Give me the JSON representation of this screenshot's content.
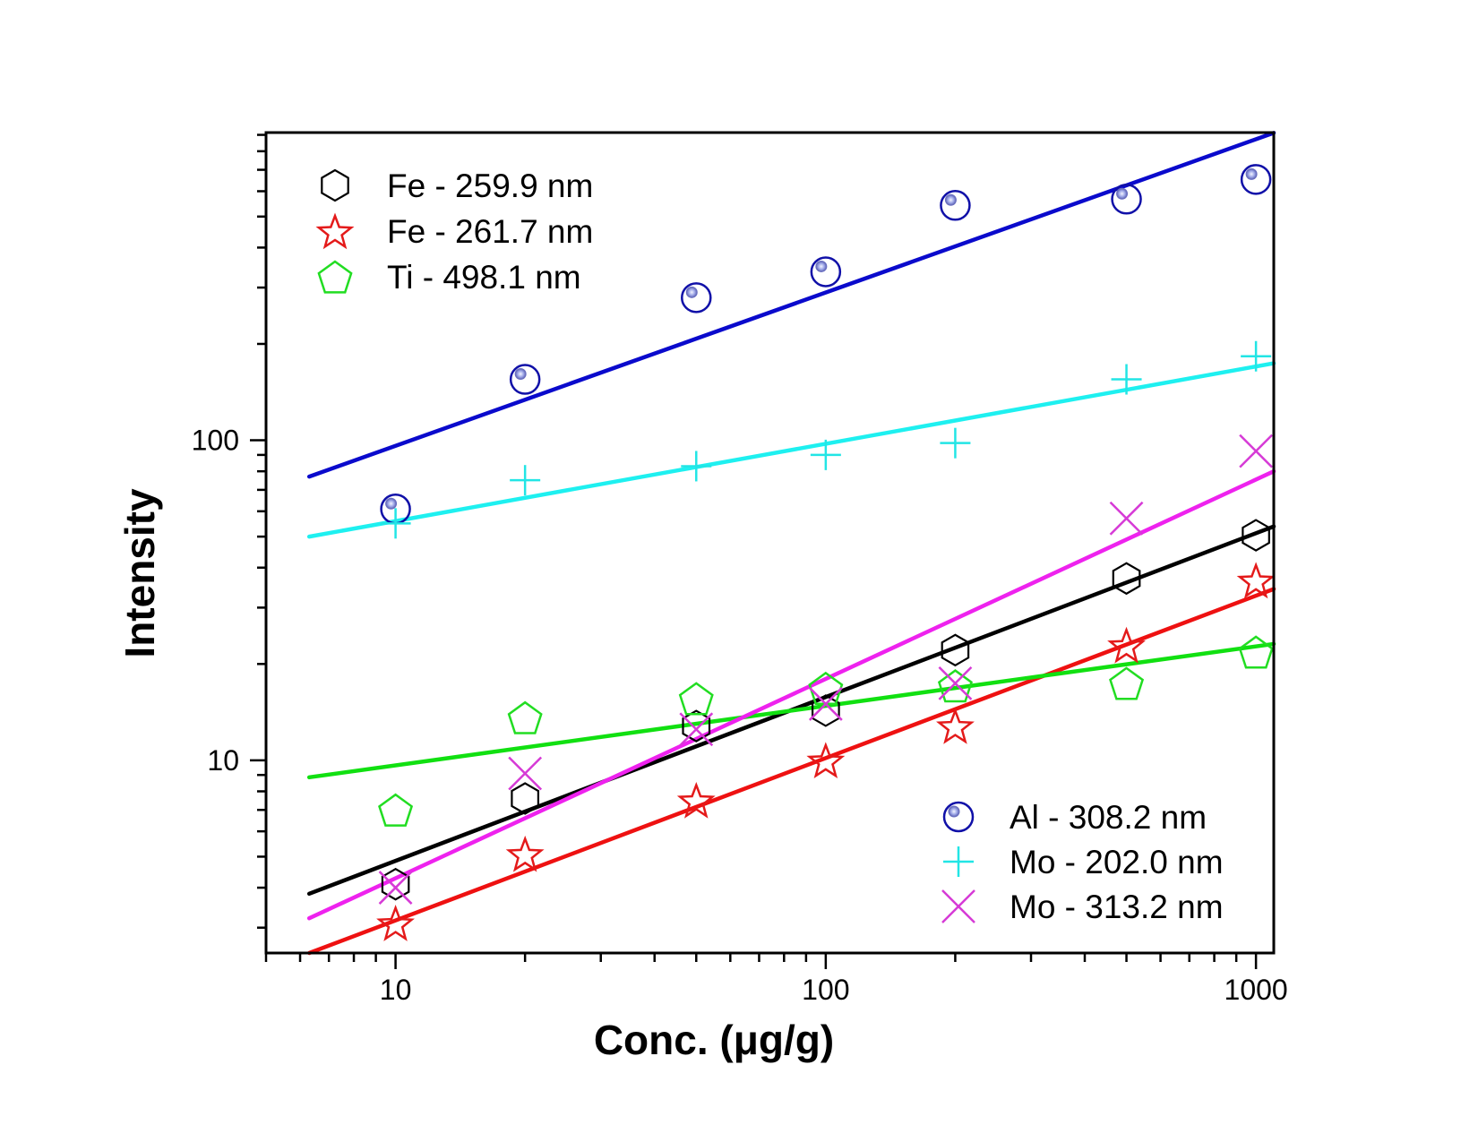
{
  "chart_data": {
    "type": "scatter",
    "title": "",
    "xlabel": "Conc. (μg/g)",
    "ylabel": "Intensity",
    "xscale": "log",
    "yscale": "log",
    "xlim": [
      5,
      1100
    ],
    "ylim": [
      2.5,
      915
    ],
    "grid": false,
    "x_ticks": [
      {
        "value": 10,
        "label": "10"
      },
      {
        "value": 100,
        "label": "100"
      },
      {
        "value": 1000,
        "label": "1000"
      }
    ],
    "y_ticks": [
      {
        "value": 10,
        "label": "10"
      },
      {
        "value": 100,
        "label": "100"
      }
    ],
    "x": [
      10,
      20,
      50,
      100,
      200,
      500,
      1000
    ],
    "legends": [
      {
        "placement": "top-left",
        "entries": [
          "fe259",
          "fe261",
          "ti498"
        ]
      },
      {
        "placement": "bottom-right",
        "entries": [
          "al308",
          "mo202",
          "mo313"
        ]
      }
    ],
    "series": [
      {
        "id": "fe259",
        "name": "Fe - 259.9 nm",
        "marker": "hexagon",
        "color": "#000000",
        "values": [
          4.1,
          7.6,
          12.8,
          14.3,
          22.1,
          37,
          50.5
        ],
        "fit": {
          "x": [
            6.3,
            1100
          ],
          "y": [
            3.83,
            53.8
          ]
        }
      },
      {
        "id": "fe261",
        "name": "Fe - 261.7 nm",
        "marker": "star",
        "color": "#e41a1a",
        "values": [
          3.1,
          5.1,
          7.5,
          10.0,
          12.8,
          22.9,
          36.5
        ],
        "fit": {
          "x": [
            6.3,
            1100
          ],
          "y": [
            2.5,
            34.3
          ]
        }
      },
      {
        "id": "ti498",
        "name": "Ti - 498.1 nm",
        "marker": "pentagon",
        "color": "#22dd22",
        "values": [
          7.0,
          13.6,
          15.6,
          16.8,
          17.1,
          17.4,
          21.8
        ],
        "fit": {
          "x": [
            6.3,
            1100
          ],
          "y": [
            8.85,
            23.1
          ]
        }
      },
      {
        "id": "al308",
        "name": "Al - 308.2 nm",
        "marker": "circle-dot",
        "color": "#1010a8",
        "values": [
          61,
          155,
          279,
          336,
          542,
          567,
          653
        ],
        "fit": {
          "x": [
            6.3,
            1100
          ],
          "y": [
            77,
            913
          ]
        }
      },
      {
        "id": "mo202",
        "name": "Mo - 202.0 nm",
        "marker": "plus",
        "color": "#22e5e5",
        "values": [
          55,
          75,
          83,
          90,
          98,
          155,
          183
        ],
        "fit": {
          "x": [
            6.3,
            1100
          ],
          "y": [
            50,
            174
          ]
        }
      },
      {
        "id": "mo313",
        "name": "Mo - 313.2 nm",
        "marker": "x",
        "color": "#d63ad6",
        "values": [
          4.0,
          9.1,
          12.5,
          15.0,
          17.4,
          57,
          92.5
        ],
        "fit": {
          "x": [
            6.3,
            1100
          ],
          "y": [
            3.21,
            80
          ]
        }
      }
    ],
    "fit_line_colors": {
      "fe259": "#000000",
      "fe261": "#ee1111",
      "ti498": "#11e011",
      "al308": "#0a0acc",
      "mo202": "#1ef0f0",
      "mo313": "#ee22ee"
    }
  }
}
